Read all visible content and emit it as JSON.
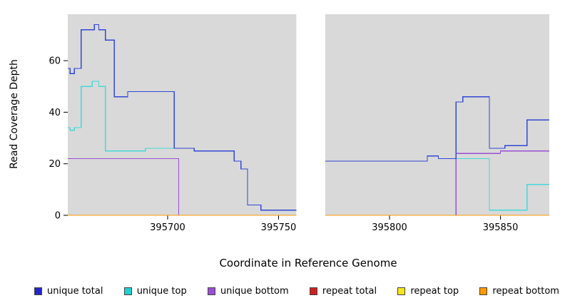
{
  "figure": {
    "xlabel": "Coordinate in Reference Genome",
    "ylabel": "Read Coverage Depth"
  },
  "chart_data": {
    "type": "line",
    "step": "post",
    "title": "",
    "xlabel": "Coordinate in Reference Genome",
    "ylabel": "Read Coverage Depth",
    "panel_bg": "#d9d9d9",
    "x_axis": {
      "min": 395655,
      "max": 395872,
      "ticks": [
        395700,
        395750,
        395800,
        395850
      ]
    },
    "y_axis": {
      "min": 0,
      "max": 78,
      "ticks": [
        0,
        20,
        40,
        60
      ]
    },
    "gap_region": {
      "from": 395758,
      "to": 395771
    },
    "series": [
      {
        "name": "repeat total",
        "color": "#cc2020",
        "segments": [
          [
            [
              395655,
              0
            ],
            [
              395758,
              0
            ]
          ],
          [
            [
              395771,
              0
            ],
            [
              395872,
              0
            ]
          ]
        ]
      },
      {
        "name": "repeat top",
        "color": "#f5e61e",
        "segments": [
          [
            [
              395655,
              0
            ],
            [
              395758,
              0
            ]
          ],
          [
            [
              395771,
              0
            ],
            [
              395872,
              0
            ]
          ]
        ]
      },
      {
        "name": "unique bottom",
        "color": "#9a4fd1",
        "segments": [
          [
            [
              395655,
              22
            ],
            [
              395705,
              22
            ],
            [
              395705,
              0
            ],
            [
              395758,
              0
            ]
          ],
          [
            [
              395771,
              0
            ],
            [
              395830,
              0
            ],
            [
              395830,
              24
            ],
            [
              395850,
              24
            ],
            [
              395850,
              25
            ],
            [
              395872,
              25
            ]
          ]
        ]
      },
      {
        "name": "unique top",
        "color": "#45d8d8",
        "segments": [
          [
            [
              395655,
              34
            ],
            [
              395656,
              33
            ],
            [
              395658,
              34
            ],
            [
              395661,
              34
            ],
            [
              395661,
              50
            ],
            [
              395665,
              50
            ],
            [
              395666,
              52
            ],
            [
              395669,
              52
            ],
            [
              395669,
              50
            ],
            [
              395672,
              50
            ],
            [
              395672,
              25
            ],
            [
              395690,
              25
            ],
            [
              395690,
              26
            ],
            [
              395712,
              26
            ],
            [
              395712,
              25
            ],
            [
              395730,
              25
            ],
            [
              395730,
              21
            ],
            [
              395733,
              21
            ],
            [
              395733,
              18
            ],
            [
              395736,
              18
            ],
            [
              395736,
              4
            ],
            [
              395742,
              4
            ],
            [
              395742,
              2
            ],
            [
              395758,
              2
            ]
          ],
          [
            [
              395771,
              21
            ],
            [
              395817,
              21
            ],
            [
              395817,
              23
            ],
            [
              395822,
              23
            ],
            [
              395822,
              22
            ],
            [
              395830,
              22
            ],
            [
              395845,
              22
            ],
            [
              395845,
              2
            ],
            [
              395862,
              2
            ],
            [
              395862,
              12
            ],
            [
              395872,
              12
            ]
          ]
        ]
      },
      {
        "name": "unique total",
        "color": "#3347d4",
        "segments": [
          [
            [
              395655,
              57
            ],
            [
              395656,
              55
            ],
            [
              395658,
              57
            ],
            [
              395661,
              57
            ],
            [
              395661,
              72
            ],
            [
              395666,
              72
            ],
            [
              395667,
              74
            ],
            [
              395669,
              74
            ],
            [
              395669,
              72
            ],
            [
              395672,
              72
            ],
            [
              395672,
              68
            ],
            [
              395676,
              68
            ],
            [
              395676,
              46
            ],
            [
              395682,
              46
            ],
            [
              395682,
              48
            ],
            [
              395703,
              48
            ],
            [
              395703,
              26
            ],
            [
              395712,
              26
            ],
            [
              395712,
              25
            ],
            [
              395730,
              25
            ],
            [
              395730,
              21
            ],
            [
              395733,
              21
            ],
            [
              395733,
              18
            ],
            [
              395736,
              18
            ],
            [
              395736,
              4
            ],
            [
              395742,
              4
            ],
            [
              395742,
              2
            ],
            [
              395758,
              2
            ]
          ],
          [
            [
              395771,
              21
            ],
            [
              395817,
              21
            ],
            [
              395817,
              23
            ],
            [
              395822,
              23
            ],
            [
              395822,
              22
            ],
            [
              395830,
              22
            ],
            [
              395830,
              44
            ],
            [
              395833,
              44
            ],
            [
              395833,
              46
            ],
            [
              395845,
              46
            ],
            [
              395845,
              26
            ],
            [
              395852,
              26
            ],
            [
              395852,
              27
            ],
            [
              395862,
              27
            ],
            [
              395862,
              37
            ],
            [
              395872,
              37
            ]
          ]
        ]
      },
      {
        "name": "repeat bottom",
        "color": "#ff9900",
        "segments": [
          [
            [
              395655,
              0
            ],
            [
              395758,
              0
            ]
          ],
          [
            [
              395771,
              0
            ],
            [
              395872,
              0
            ]
          ]
        ]
      }
    ],
    "legend": [
      {
        "label": "unique total",
        "color": "#2525cf"
      },
      {
        "label": "unique top",
        "color": "#1fd0d0"
      },
      {
        "label": "unique bottom",
        "color": "#9a4fd1"
      },
      {
        "label": "repeat total",
        "color": "#cc2020"
      },
      {
        "label": "repeat top",
        "color": "#f5e61e"
      },
      {
        "label": "repeat bottom",
        "color": "#ff9900"
      }
    ],
    "legend_position": "bottom"
  }
}
